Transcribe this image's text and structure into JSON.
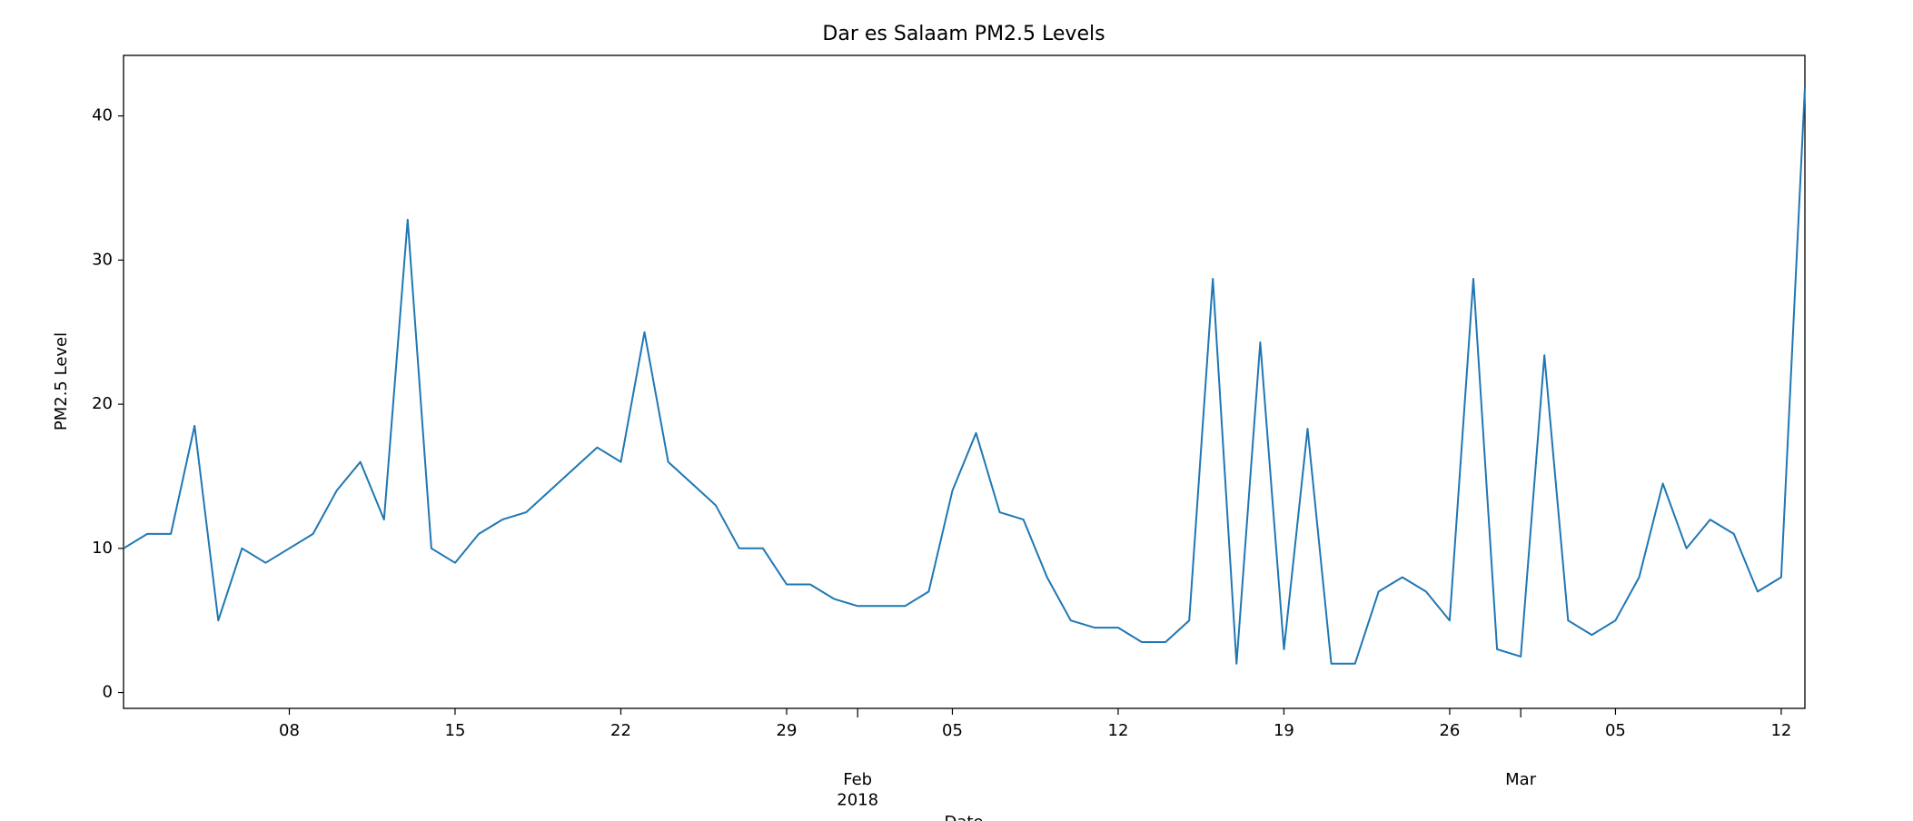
{
  "chart_data": {
    "type": "line",
    "title": "Dar es Salaam PM2.5 Levels",
    "xlabel": "Date",
    "ylabel": "PM2.5 Level",
    "x": [
      "2018-01-01",
      "2018-01-02",
      "2018-01-03",
      "2018-01-04",
      "2018-01-05",
      "2018-01-06",
      "2018-01-07",
      "2018-01-08",
      "2018-01-09",
      "2018-01-10",
      "2018-01-11",
      "2018-01-12",
      "2018-01-13",
      "2018-01-14",
      "2018-01-15",
      "2018-01-16",
      "2018-01-17",
      "2018-01-18",
      "2018-01-19",
      "2018-01-20",
      "2018-01-21",
      "2018-01-22",
      "2018-01-23",
      "2018-01-24",
      "2018-01-25",
      "2018-01-26",
      "2018-01-27",
      "2018-01-28",
      "2018-01-29",
      "2018-01-30",
      "2018-01-31",
      "2018-02-01",
      "2018-02-02",
      "2018-02-03",
      "2018-02-04",
      "2018-02-05",
      "2018-02-06",
      "2018-02-07",
      "2018-02-08",
      "2018-02-09",
      "2018-02-10",
      "2018-02-11",
      "2018-02-12",
      "2018-02-13",
      "2018-02-14",
      "2018-02-15",
      "2018-02-16",
      "2018-02-17",
      "2018-02-18",
      "2018-02-19",
      "2018-02-20",
      "2018-02-21",
      "2018-02-22",
      "2018-02-23",
      "2018-02-24",
      "2018-02-25",
      "2018-02-26",
      "2018-02-27",
      "2018-02-28",
      "2018-03-01",
      "2018-03-02",
      "2018-03-03",
      "2018-03-04",
      "2018-03-05",
      "2018-03-06",
      "2018-03-07",
      "2018-03-08",
      "2018-03-09",
      "2018-03-10",
      "2018-03-11",
      "2018-03-12",
      "2018-03-13"
    ],
    "series": [
      {
        "color": "#1f77b4",
        "values": [
          10,
          11,
          11,
          18.5,
          5,
          10,
          9,
          10,
          11,
          14,
          16,
          12,
          32.8,
          10,
          9,
          11,
          12,
          12.5,
          14,
          15.5,
          17,
          16,
          25,
          16,
          14.5,
          13,
          10,
          10,
          7.5,
          7.5,
          6.5,
          6,
          6,
          6,
          7,
          14,
          18,
          12.5,
          12,
          8,
          5,
          4.5,
          4.5,
          3.5,
          3.5,
          5,
          28.7,
          2,
          24.3,
          3,
          18.3,
          2,
          2,
          7,
          8,
          7,
          5,
          28.7,
          3,
          2.5,
          23.4,
          5,
          4,
          5,
          8,
          14.5,
          10,
          12,
          11,
          7,
          8,
          42
        ]
      }
    ],
    "xlim": [
      "2018-01-01",
      "2018-03-13"
    ],
    "xticks": [
      {
        "value": "2018-01-08",
        "label": "08"
      },
      {
        "value": "2018-01-15",
        "label": "15"
      },
      {
        "value": "2018-01-22",
        "label": "22"
      },
      {
        "value": "2018-01-29",
        "label": "29"
      },
      {
        "value": "2018-02-01",
        "label": "Feb\n2018"
      },
      {
        "value": "2018-02-05",
        "label": "05"
      },
      {
        "value": "2018-02-12",
        "label": "12"
      },
      {
        "value": "2018-02-19",
        "label": "19"
      },
      {
        "value": "2018-02-26",
        "label": "26"
      },
      {
        "value": "2018-03-01",
        "label": "Mar"
      },
      {
        "value": "2018-03-05",
        "label": "05"
      },
      {
        "value": "2018-03-12",
        "label": "12"
      }
    ],
    "ylim": [
      -1.1,
      44.2
    ],
    "yticks": [
      0,
      10,
      20,
      30,
      40
    ],
    "grid": false
  }
}
